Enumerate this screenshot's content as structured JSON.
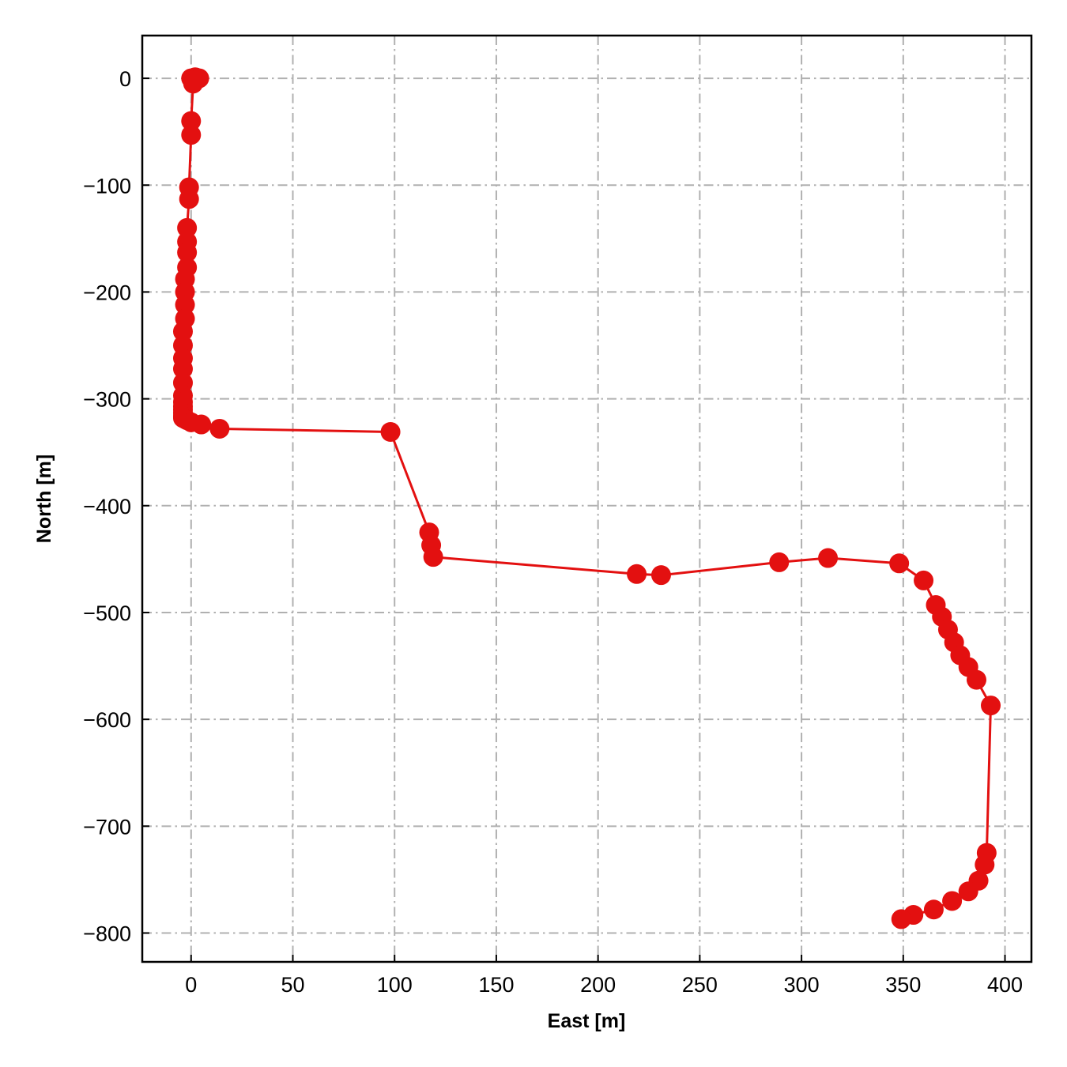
{
  "chart_data": {
    "type": "line",
    "title": "",
    "xlabel": "East [m]",
    "ylabel": "North [m]",
    "xlim": [
      -24,
      413
    ],
    "ylim": [
      -827,
      40
    ],
    "xticks": [
      0,
      50,
      100,
      150,
      200,
      250,
      300,
      350,
      400
    ],
    "yticks": [
      0,
      -100,
      -200,
      -300,
      -400,
      -500,
      -600,
      -700,
      -800
    ],
    "grid": true,
    "grid_style": "dash-dot",
    "line_color": "#e31010",
    "marker_color": "#e31010",
    "marker": "circle",
    "series": [
      {
        "x": [
          0,
          1,
          2,
          3,
          4,
          1,
          0,
          0,
          -1,
          -1,
          -2,
          -2,
          -2,
          -2,
          -3,
          -3,
          -3,
          -3,
          -4,
          -4,
          -4,
          -4,
          -4,
          -4,
          -4,
          -4,
          -4,
          -4,
          -4,
          -4,
          -3,
          -2,
          0,
          5,
          14,
          98,
          117,
          118,
          119,
          219,
          231,
          289,
          313,
          348,
          360,
          366,
          369,
          372,
          375,
          378,
          382,
          386,
          393,
          391,
          390,
          387,
          382,
          374,
          365,
          355,
          349
        ],
        "y": [
          0,
          0,
          1,
          0,
          0,
          -5,
          -40,
          -53,
          -102,
          -113,
          -140,
          -153,
          -163,
          -177,
          -188,
          -200,
          -212,
          -225,
          -237,
          -250,
          -262,
          -272,
          -285,
          -297,
          -303,
          -307,
          -310,
          -313,
          -316,
          -318,
          -319,
          -320,
          -322,
          -324,
          -328,
          -331,
          -425,
          -437,
          -448,
          -464,
          -465,
          -453,
          -449,
          -454,
          -470,
          -493,
          -504,
          -516,
          -528,
          -540,
          -551,
          -563,
          -587,
          -725,
          -736,
          -751,
          -761,
          -770,
          -778,
          -783,
          -787
        ]
      }
    ]
  }
}
